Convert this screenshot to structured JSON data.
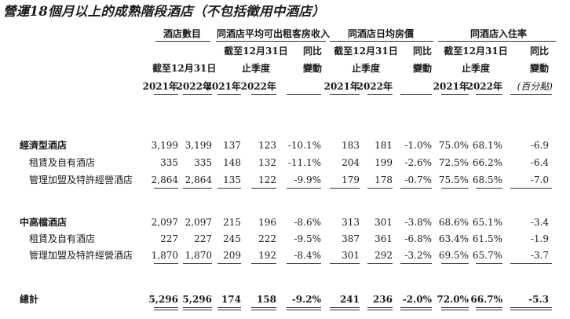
{
  "title": "營運18個月以上的成熟階段酒店（不包括徵用中酒店）",
  "header": {
    "groups": [
      "酒店數目",
      "同酒店平均可出租客房收入",
      "同酒店日均房價",
      "同酒店入住率"
    ],
    "as_of": "截至12月31日",
    "as_of_line1": "截至12月31日",
    "quarter": "止季度",
    "yoy_top": "同比",
    "yoy_bottom": "變動",
    "year_2021": "2021年",
    "year_2022": "2022年",
    "pct_points": "(百分點)"
  },
  "rows": [
    {
      "label": "經濟型酒店",
      "bold": true,
      "v": [
        "3,199",
        "3,199",
        "137",
        "123",
        "-10.1%",
        "183",
        "181",
        "-1.0%",
        "75.0%",
        "68.1%",
        "-6.9"
      ]
    },
    {
      "label": "租賃及自有酒店",
      "v": [
        "335",
        "335",
        "148",
        "132",
        "-11.1%",
        "204",
        "199",
        "-2.6%",
        "72.5%",
        "66.2%",
        "-6.4"
      ]
    },
    {
      "label": "管理加盟及特許經營酒店",
      "v": [
        "2,864",
        "2,864",
        "135",
        "122",
        "-9.9%",
        "179",
        "178",
        "-0.7%",
        "75.5%",
        "68.5%",
        "-7.0"
      ]
    },
    {
      "label": "中高檔酒店",
      "bold": true,
      "v": [
        "2,097",
        "2,097",
        "215",
        "196",
        "-8.6%",
        "313",
        "301",
        "-3.8%",
        "68.6%",
        "65.1%",
        "-3.4"
      ]
    },
    {
      "label": "租賃及自有酒店",
      "v": [
        "227",
        "227",
        "245",
        "222",
        "-9.5%",
        "387",
        "361",
        "-6.8%",
        "63.4%",
        "61.5%",
        "-1.9"
      ]
    },
    {
      "label": "管理加盟及特許經營酒店",
      "v": [
        "1,870",
        "1,870",
        "209",
        "192",
        "-8.4%",
        "301",
        "292",
        "-3.2%",
        "69.5%",
        "65.7%",
        "-3.7"
      ]
    },
    {
      "label": "總計",
      "bold": true,
      "v": [
        "5,296",
        "5,296",
        "174",
        "158",
        "-9.2%",
        "241",
        "236",
        "-2.0%",
        "72.0%",
        "66.7%",
        "-5.3"
      ]
    }
  ]
}
